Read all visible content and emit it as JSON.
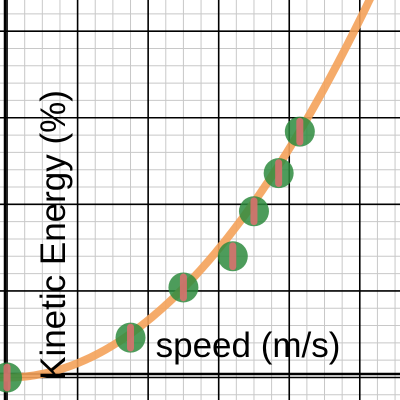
{
  "chart_data": {
    "type": "scatter",
    "xlabel": "speed (m/s)",
    "ylabel": "Kinetic Energy (%)",
    "x_range": [
      -0.1,
      5.57
    ],
    "y_range": [
      -6.5,
      109
    ],
    "grid": true,
    "series": [
      {
        "kind": "points",
        "x": [
          0,
          1.75,
          2.5,
          3.2,
          3.5,
          3.85,
          4.15
        ],
        "y": [
          0,
          11.5,
          26,
          35,
          48,
          59,
          71
        ],
        "error": 3,
        "color": "#2e8b3e",
        "error_color": "#e07070"
      },
      {
        "kind": "curve",
        "fit": "quadratic",
        "coefficient": 4.13,
        "color": "#f4a25a"
      }
    ]
  }
}
